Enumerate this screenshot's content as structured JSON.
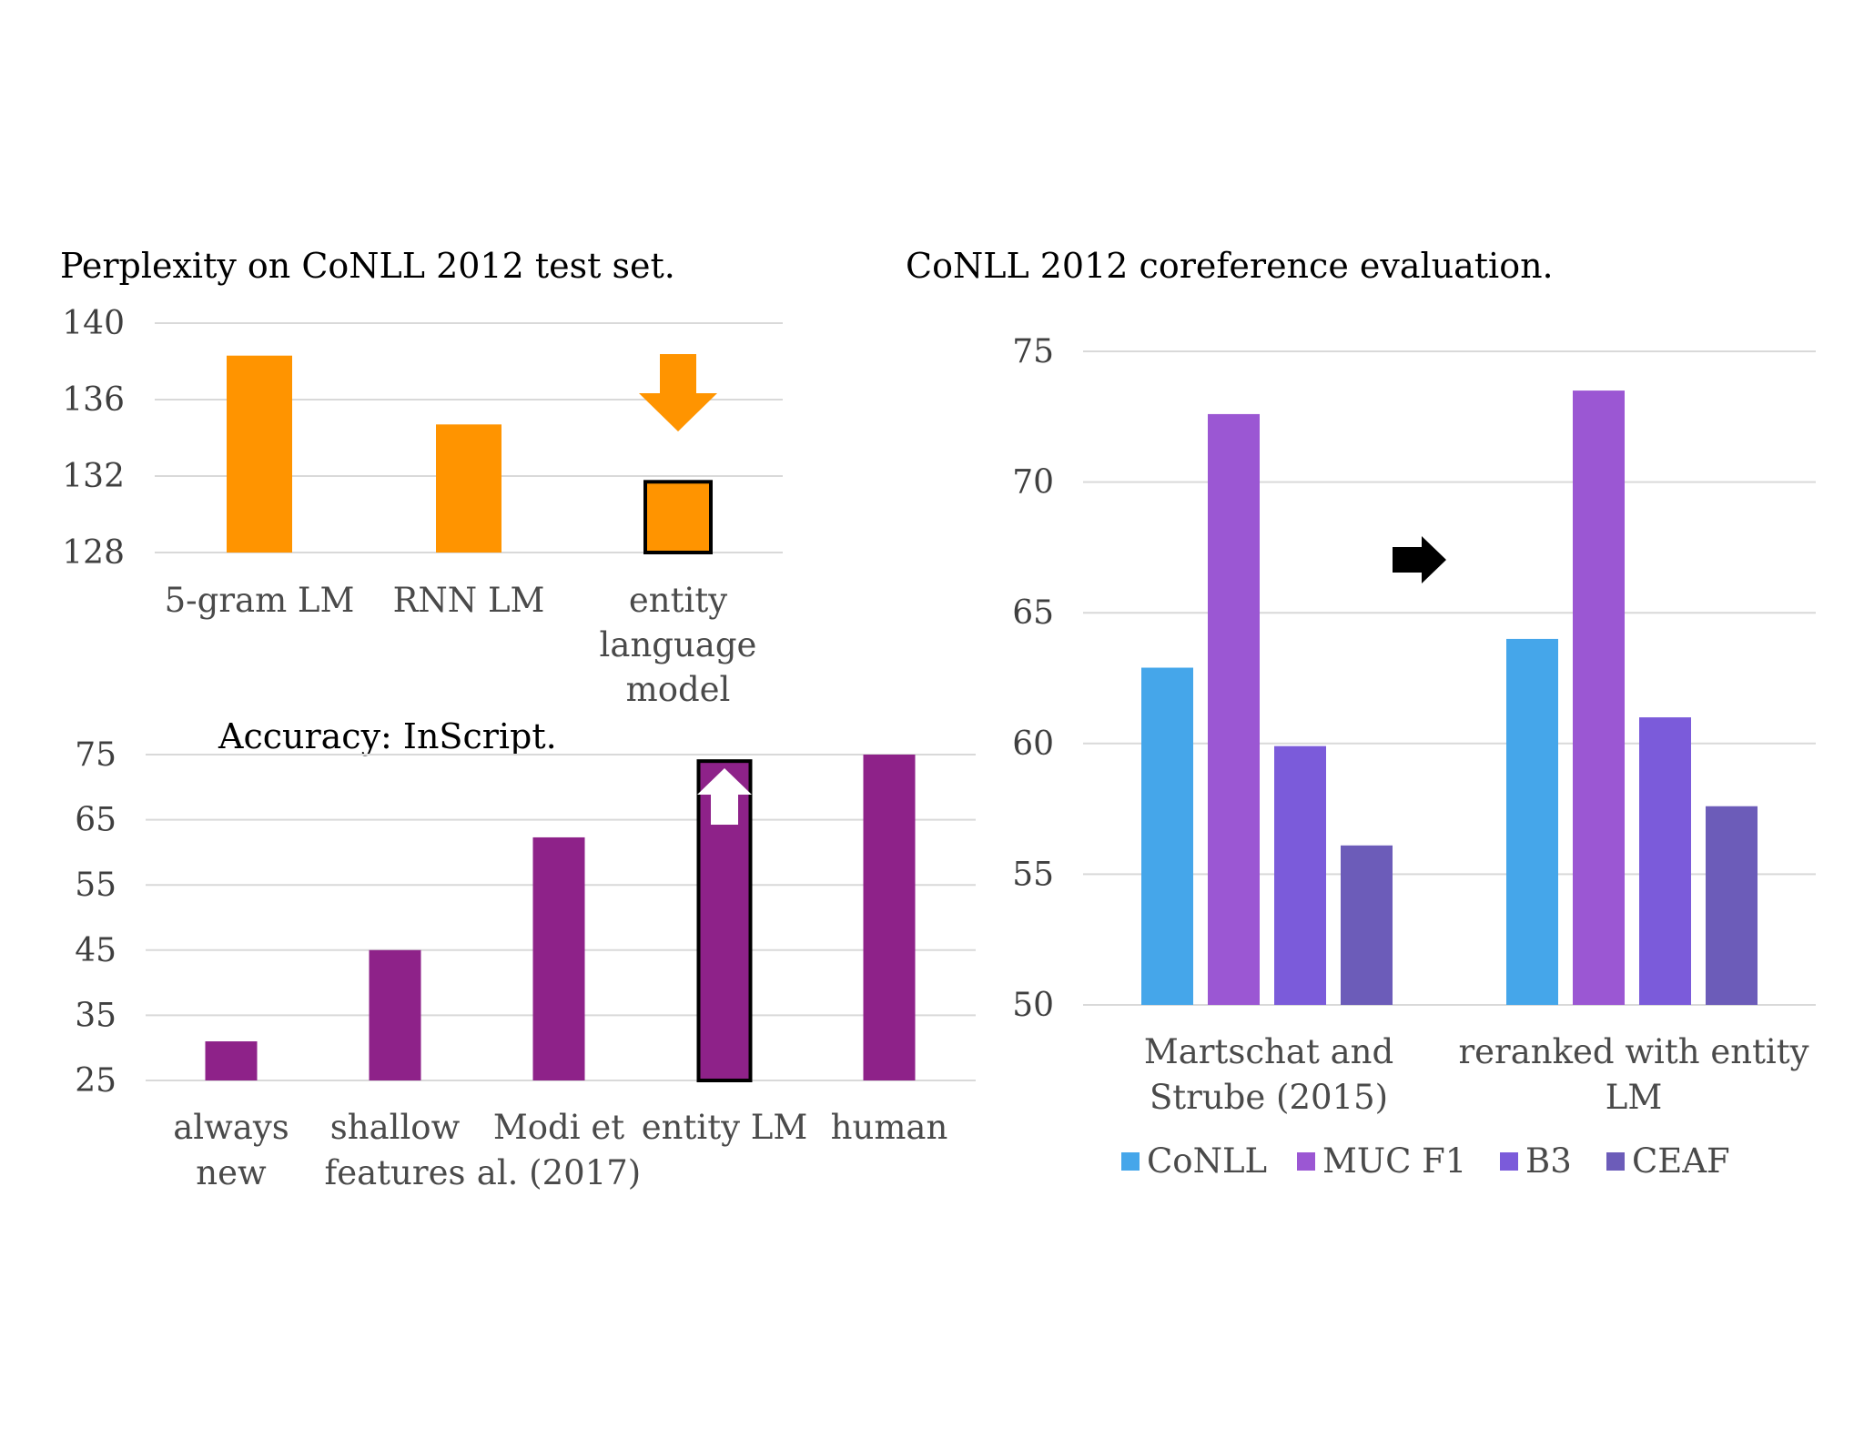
{
  "chart_data": [
    {
      "id": "perplexity",
      "type": "bar",
      "title": "Perplexity on CoNLL 2012 test set.",
      "categories": [
        [
          "5-gram LM"
        ],
        [
          "RNN LM"
        ],
        [
          "entity",
          "language",
          "model"
        ]
      ],
      "values": [
        138.3,
        134.7,
        131.7
      ],
      "ylim": [
        128,
        140
      ],
      "yticks": [
        140,
        136,
        132,
        128
      ],
      "bar_color": "#ff9400",
      "highlight_index": 2,
      "annotation": "down-arrow-icon",
      "annotation_color": "#ff9400",
      "grid": true,
      "legend": "none"
    },
    {
      "id": "accuracy",
      "type": "bar",
      "title": "Accuracy:  InScript.",
      "categories": [
        [
          "always",
          "new"
        ],
        [
          "shallow",
          "features"
        ],
        [
          "Modi et",
          "al. (2017)"
        ],
        [
          "entity LM"
        ],
        [
          "human"
        ]
      ],
      "values": [
        31,
        45,
        62.3,
        74,
        75
      ],
      "ylim": [
        25,
        75
      ],
      "yticks": [
        75,
        65,
        55,
        45,
        35,
        25
      ],
      "bar_color": "#8e2289",
      "highlight_index": 3,
      "annotation": "up-arrow-icon",
      "annotation_color": "#ffffff",
      "grid": true,
      "legend": "none"
    },
    {
      "id": "coreference",
      "type": "bar",
      "title": "CoNLL 2012 coreference  evaluation.",
      "categories": [
        [
          "Martschat  and",
          "Strube (2015)"
        ],
        [
          "reranked with entity",
          "LM"
        ]
      ],
      "series": [
        {
          "name": "CoNLL",
          "color": "#45a6ea",
          "values": [
            62.9,
            64.0
          ]
        },
        {
          "name": "MUC F1",
          "color": "#9b57d3",
          "values": [
            72.6,
            73.5
          ]
        },
        {
          "name": "B3",
          "color": "#7b5bda",
          "values": [
            59.9,
            61.0
          ]
        },
        {
          "name": "CEAF",
          "color": "#6c5cb9",
          "values": [
            56.1,
            57.6
          ]
        }
      ],
      "ylim": [
        50,
        75
      ],
      "yticks": [
        75,
        70,
        65,
        60,
        55,
        50
      ],
      "annotation": "right-arrow-icon",
      "annotation_color": "#000000",
      "grid": true,
      "legend": "bottom"
    }
  ]
}
